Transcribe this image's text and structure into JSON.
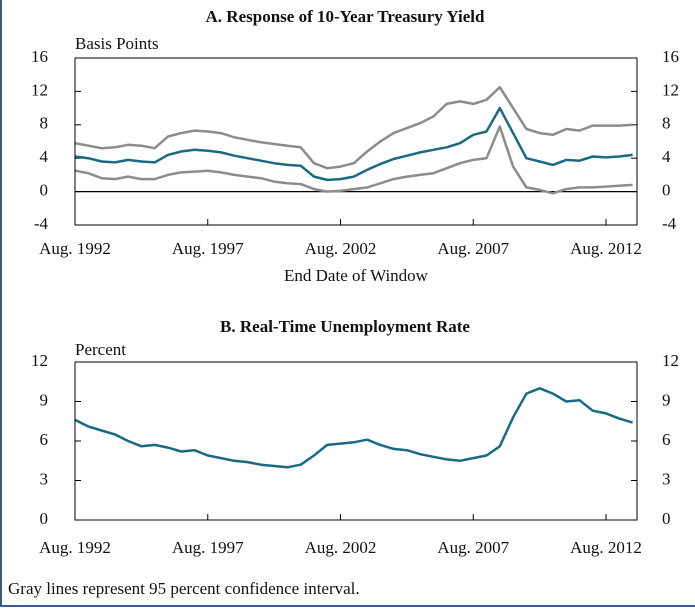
{
  "chart_data": [
    {
      "type": "line",
      "title": "A. Response of 10-Year Treasury Yield",
      "y_label": "Basis Points",
      "x_label": "End Date of Window",
      "x": [
        "1992-08",
        "1993-02",
        "1993-08",
        "1994-02",
        "1994-08",
        "1995-02",
        "1995-08",
        "1996-02",
        "1996-08",
        "1997-02",
        "1997-08",
        "1998-02",
        "1998-08",
        "1999-02",
        "1999-08",
        "2000-02",
        "2000-08",
        "2001-02",
        "2001-08",
        "2002-02",
        "2002-08",
        "2003-02",
        "2003-08",
        "2004-02",
        "2004-08",
        "2005-02",
        "2005-08",
        "2006-02",
        "2006-08",
        "2007-02",
        "2007-08",
        "2008-02",
        "2008-08",
        "2009-02",
        "2009-08",
        "2010-02",
        "2010-08",
        "2011-02",
        "2011-08",
        "2012-02",
        "2012-08",
        "2013-02",
        "2013-08"
      ],
      "series": [
        {
          "color": "#8c8c8c",
          "values": [
            5.8,
            5.5,
            5.2,
            5.3,
            5.6,
            5.5,
            5.2,
            6.6,
            7.0,
            7.3,
            7.2,
            7.0,
            6.5,
            6.2,
            5.9,
            5.7,
            5.5,
            5.3,
            3.4,
            2.8,
            3.0,
            3.4,
            4.8,
            6.0,
            7.0,
            7.6,
            8.2,
            9.0,
            10.5,
            10.8,
            10.5,
            11.0,
            12.5,
            10.0,
            7.5,
            7.0,
            6.8,
            7.5,
            7.3,
            7.9,
            7.9,
            7.9,
            8.0
          ]
        },
        {
          "color": "#8c8c8c",
          "values": [
            2.5,
            2.2,
            1.6,
            1.5,
            1.8,
            1.5,
            1.5,
            2.0,
            2.3,
            2.4,
            2.5,
            2.3,
            2.0,
            1.8,
            1.6,
            1.2,
            1.0,
            0.9,
            0.3,
            0.0,
            0.1,
            0.3,
            0.5,
            1.0,
            1.5,
            1.8,
            2.0,
            2.2,
            2.8,
            3.4,
            3.8,
            4.0,
            7.8,
            3.0,
            0.5,
            0.2,
            -0.2,
            0.3,
            0.5,
            0.5,
            0.6,
            0.7,
            0.8
          ]
        },
        {
          "color": "#1a6a85",
          "values": [
            4.2,
            4.0,
            3.6,
            3.5,
            3.8,
            3.6,
            3.5,
            4.4,
            4.8,
            5.0,
            4.9,
            4.7,
            4.3,
            4.0,
            3.7,
            3.4,
            3.2,
            3.1,
            1.8,
            1.4,
            1.5,
            1.8,
            2.6,
            3.3,
            3.9,
            4.3,
            4.7,
            5.0,
            5.3,
            5.8,
            6.8,
            7.2,
            10.0,
            7.0,
            4.0,
            3.6,
            3.2,
            3.8,
            3.7,
            4.2,
            4.1,
            4.2,
            4.4
          ]
        }
      ],
      "xlim": [
        "1992-08",
        "2013-10"
      ],
      "xticks": [
        {
          "value": "1992-08",
          "label": "Aug. 1992"
        },
        {
          "value": "1997-08",
          "label": "Aug. 1997"
        },
        {
          "value": "2002-08",
          "label": "Aug. 2002"
        },
        {
          "value": "2007-08",
          "label": "Aug. 2007"
        },
        {
          "value": "2012-08",
          "label": "Aug. 2012"
        }
      ],
      "ylim": [
        -4,
        16
      ],
      "yticks": [
        -4,
        0,
        4,
        8,
        12,
        16
      ],
      "zero_line": true
    },
    {
      "type": "line",
      "title": "B. Real-Time Unemployment Rate",
      "y_label": "Percent",
      "x": [
        "1992-08",
        "1993-02",
        "1993-08",
        "1994-02",
        "1994-08",
        "1995-02",
        "1995-08",
        "1996-02",
        "1996-08",
        "1997-02",
        "1997-08",
        "1998-02",
        "1998-08",
        "1999-02",
        "1999-08",
        "2000-02",
        "2000-08",
        "2001-02",
        "2001-08",
        "2002-02",
        "2002-08",
        "2003-02",
        "2003-08",
        "2004-02",
        "2004-08",
        "2005-02",
        "2005-08",
        "2006-02",
        "2006-08",
        "2007-02",
        "2007-08",
        "2008-02",
        "2008-08",
        "2009-02",
        "2009-08",
        "2010-02",
        "2010-08",
        "2011-02",
        "2011-08",
        "2012-02",
        "2012-08",
        "2013-02",
        "2013-08"
      ],
      "series": [
        {
          "color": "#1a6a85",
          "values": [
            7.6,
            7.1,
            6.8,
            6.5,
            6.0,
            5.6,
            5.7,
            5.5,
            5.2,
            5.3,
            4.9,
            4.7,
            4.5,
            4.4,
            4.2,
            4.1,
            4.0,
            4.2,
            4.9,
            5.7,
            5.8,
            5.9,
            6.1,
            5.7,
            5.4,
            5.3,
            5.0,
            4.8,
            4.6,
            4.5,
            4.7,
            4.9,
            5.6,
            7.8,
            9.6,
            10.0,
            9.6,
            9.0,
            9.1,
            8.3,
            8.1,
            7.7,
            7.4
          ]
        }
      ],
      "xlim": [
        "1992-08",
        "2013-10"
      ],
      "xticks": [
        {
          "value": "1992-08",
          "label": "Aug. 1992"
        },
        {
          "value": "1997-08",
          "label": "Aug. 1997"
        },
        {
          "value": "2002-08",
          "label": "Aug. 2002"
        },
        {
          "value": "2007-08",
          "label": "Aug. 2007"
        },
        {
          "value": "2012-08",
          "label": "Aug. 2012"
        }
      ],
      "ylim": [
        0,
        12
      ],
      "yticks": [
        0,
        3,
        6,
        9,
        12
      ]
    }
  ],
  "note": "Gray lines represent 95 percent confidence interval."
}
